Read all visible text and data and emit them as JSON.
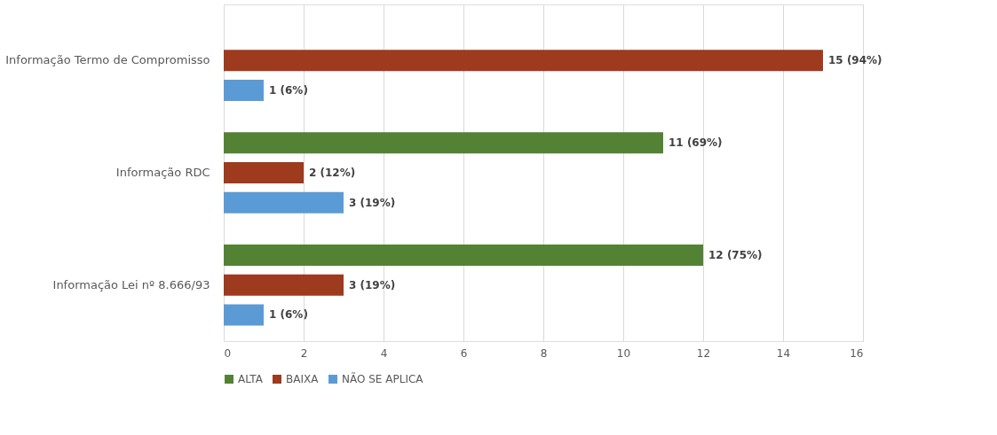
{
  "chart_data": {
    "type": "bar",
    "orientation": "horizontal",
    "categories": [
      "Informação Termo de Compromisso",
      "Informação RDC",
      "Informação Lei nº 8.666/93"
    ],
    "series": [
      {
        "name": "ALTA",
        "color": "#548235",
        "values": [
          null,
          11,
          12
        ],
        "value_labels": [
          null,
          "11 (69%)",
          "12 (75%)"
        ]
      },
      {
        "name": "BAIXA",
        "color": "#9e3a1e",
        "values": [
          15,
          2,
          3
        ],
        "value_labels": [
          "15 (94%)",
          "2 (12%)",
          "3 (19%)"
        ]
      },
      {
        "name": "NÃO SE APLICA",
        "color": "#5b9bd5",
        "values": [
          1,
          3,
          1
        ],
        "value_labels": [
          "1 (6%)",
          "3 (19%)",
          "1 (6%)"
        ]
      }
    ],
    "xlim": [
      0,
      16
    ],
    "xticks": [
      0,
      2,
      4,
      6,
      8,
      10,
      12,
      14,
      16
    ],
    "grid": "x",
    "legend": "bottom"
  }
}
